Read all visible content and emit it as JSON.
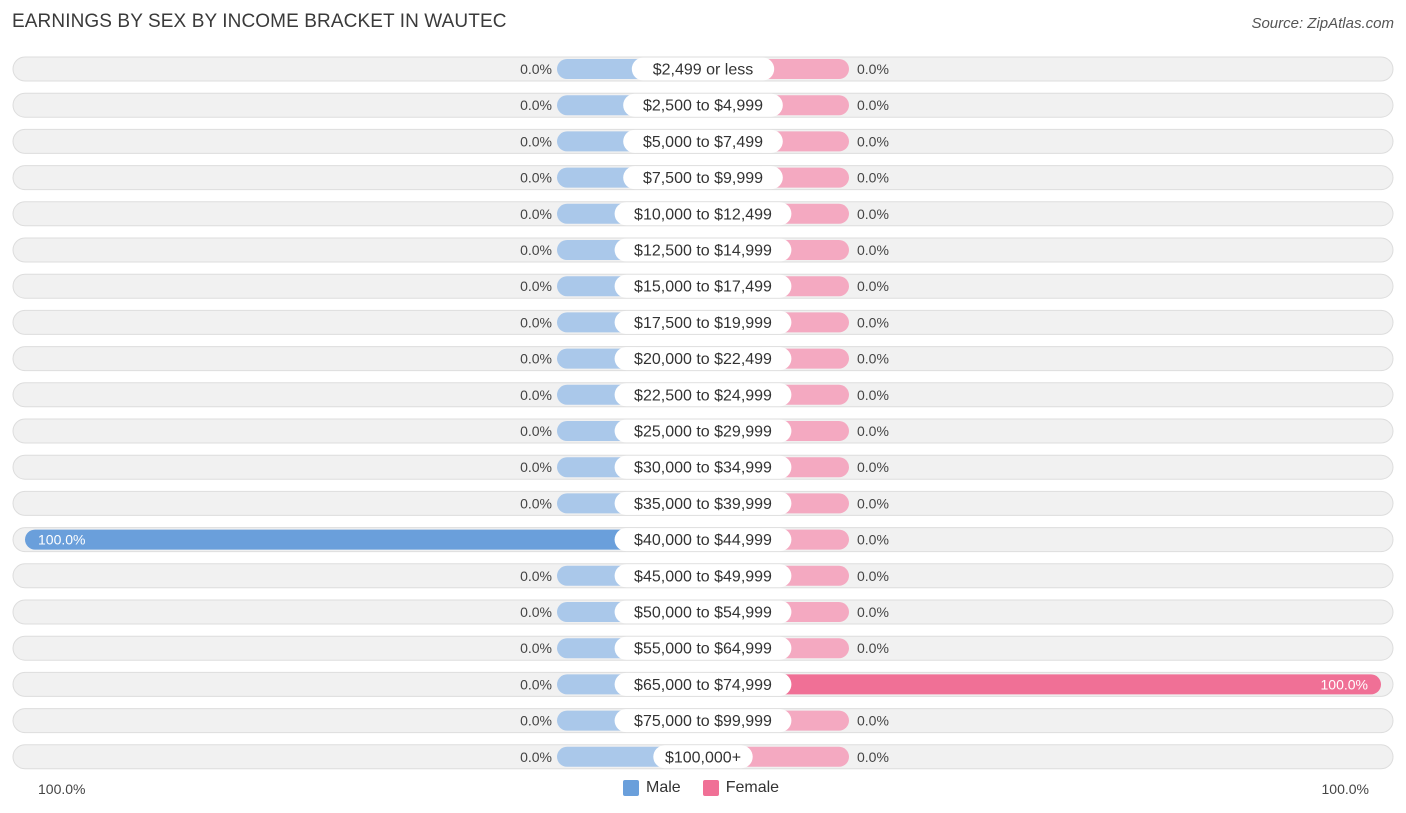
{
  "title": "EARNINGS BY SEX BY INCOME BRACKET IN WAUTEC",
  "source": "Source: ZipAtlas.com",
  "colors": {
    "male": "#6a9fdb",
    "male_light": "#aac8ea",
    "female": "#f07096",
    "female_light": "#f4a9c1"
  },
  "legend": {
    "male_label": "Male",
    "female_label": "Female"
  },
  "axis": {
    "left_label": "100.0%",
    "right_label": "100.0%"
  },
  "chart_data": {
    "type": "bar",
    "orientation": "horizontal-diverging",
    "title": "EARNINGS BY SEX BY INCOME BRACKET IN WAUTEC",
    "xlim": [
      -100,
      100
    ],
    "categories": [
      "$2,499 or less",
      "$2,500 to $4,999",
      "$5,000 to $7,499",
      "$7,500 to $9,999",
      "$10,000 to $12,499",
      "$12,500 to $14,999",
      "$15,000 to $17,499",
      "$17,500 to $19,999",
      "$20,000 to $22,499",
      "$22,500 to $24,999",
      "$25,000 to $29,999",
      "$30,000 to $34,999",
      "$35,000 to $39,999",
      "$40,000 to $44,999",
      "$45,000 to $49,999",
      "$50,000 to $54,999",
      "$55,000 to $64,999",
      "$65,000 to $74,999",
      "$75,000 to $99,999",
      "$100,000+"
    ],
    "series": [
      {
        "name": "Male",
        "values": [
          0,
          0,
          0,
          0,
          0,
          0,
          0,
          0,
          0,
          0,
          0,
          0,
          0,
          100,
          0,
          0,
          0,
          0,
          0,
          0
        ],
        "labels": [
          "0.0%",
          "0.0%",
          "0.0%",
          "0.0%",
          "0.0%",
          "0.0%",
          "0.0%",
          "0.0%",
          "0.0%",
          "0.0%",
          "0.0%",
          "0.0%",
          "0.0%",
          "100.0%",
          "0.0%",
          "0.0%",
          "0.0%",
          "0.0%",
          "0.0%",
          "0.0%"
        ]
      },
      {
        "name": "Female",
        "values": [
          0,
          0,
          0,
          0,
          0,
          0,
          0,
          0,
          0,
          0,
          0,
          0,
          0,
          0,
          0,
          0,
          0,
          100,
          0,
          0
        ],
        "labels": [
          "0.0%",
          "0.0%",
          "0.0%",
          "0.0%",
          "0.0%",
          "0.0%",
          "0.0%",
          "0.0%",
          "0.0%",
          "0.0%",
          "0.0%",
          "0.0%",
          "0.0%",
          "0.0%",
          "0.0%",
          "0.0%",
          "0.0%",
          "100.0%",
          "0.0%",
          "0.0%"
        ]
      }
    ]
  }
}
